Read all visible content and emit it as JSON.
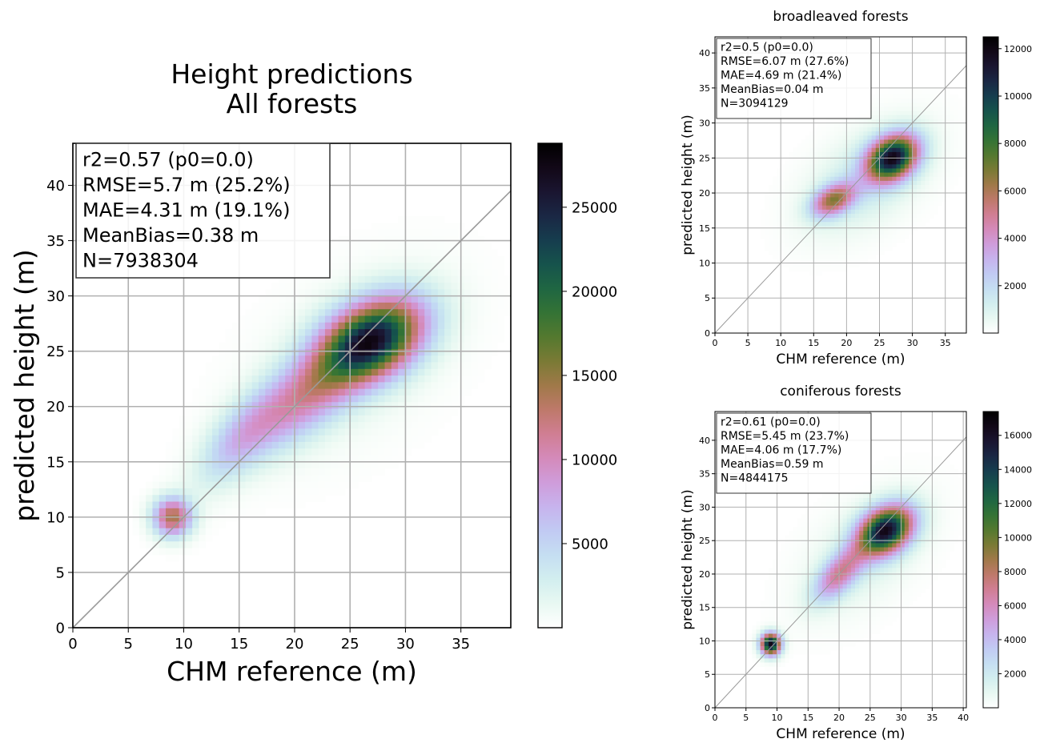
{
  "chart_data": [
    {
      "type": "heatmap",
      "title": "Height predictions\nAll forests",
      "xlabel": "CHM reference (m)",
      "ylabel": "predicted height (m)",
      "xlim": [
        0,
        39.5
      ],
      "ylim": [
        0,
        43.8
      ],
      "xticks": [
        0,
        5,
        10,
        15,
        20,
        25,
        30,
        35
      ],
      "yticks": [
        0,
        5,
        10,
        15,
        20,
        25,
        30,
        35,
        40
      ],
      "grid": true,
      "identity_line": true,
      "stats": [
        "r2=0.57 (p0=0.0)",
        "RMSE=5.7 m (25.2%)",
        "MAE=4.31 m (19.1%)",
        "MeanBias=0.38 m",
        "N=7938304"
      ],
      "colorbar": {
        "min": 0,
        "max": 28800,
        "ticks": [
          5000,
          10000,
          15000,
          20000,
          25000
        ],
        "colormap": "cubehelix_r"
      },
      "density_peaks": [
        {
          "x": 27,
          "y": 26,
          "sx": 3.4,
          "sy": 2.2,
          "angle_deg": 30,
          "count": 24500
        },
        {
          "x": 21,
          "y": 21,
          "sx": 4.5,
          "sy": 2.0,
          "angle_deg": 40,
          "count": 9500
        },
        {
          "x": 9,
          "y": 10,
          "sx": 1.2,
          "sy": 1.2,
          "angle_deg": 0,
          "count": 14000
        },
        {
          "x": 15,
          "y": 17,
          "sx": 3.5,
          "sy": 1.6,
          "angle_deg": 50,
          "count": 5500
        },
        {
          "x": 25,
          "y": 24,
          "sx": 7.5,
          "sy": 4.5,
          "angle_deg": 40,
          "count": 1300
        }
      ]
    },
    {
      "type": "heatmap",
      "title": "broadleaved forests",
      "xlabel": "CHM reference (m)",
      "ylabel": "predicted height (m)",
      "xlim": [
        0,
        38.2
      ],
      "ylim": [
        0,
        42.3
      ],
      "xticks": [
        0,
        5,
        10,
        15,
        20,
        25,
        30,
        35
      ],
      "yticks": [
        0,
        5,
        10,
        15,
        20,
        25,
        30,
        35,
        40
      ],
      "grid": true,
      "identity_line": true,
      "stats": [
        "r2=0.5 (p0=0.0)",
        "RMSE=6.07 m (27.6%)",
        "MAE=4.69 m (21.4%)",
        "MeanBias=0.04 m",
        "N=3094129"
      ],
      "colorbar": {
        "min": 0,
        "max": 12500,
        "ticks": [
          2000,
          4000,
          6000,
          8000,
          10000,
          12000
        ],
        "colormap": "cubehelix_r"
      },
      "density_peaks": [
        {
          "x": 27,
          "y": 25,
          "sx": 2.8,
          "sy": 2.0,
          "angle_deg": 30,
          "count": 11000
        },
        {
          "x": 18,
          "y": 19,
          "sx": 2.4,
          "sy": 1.4,
          "angle_deg": 25,
          "count": 5800
        },
        {
          "x": 23,
          "y": 22,
          "sx": 7.0,
          "sy": 4.0,
          "angle_deg": 35,
          "count": 1500
        }
      ]
    },
    {
      "type": "heatmap",
      "title": "coniferous forests",
      "xlabel": "CHM reference (m)",
      "ylabel": "predicted height (m)",
      "xlim": [
        0,
        40.5
      ],
      "ylim": [
        0,
        44.3
      ],
      "xticks": [
        0,
        5,
        10,
        15,
        20,
        25,
        30,
        35,
        40
      ],
      "yticks": [
        0,
        5,
        10,
        15,
        20,
        25,
        30,
        35,
        40
      ],
      "grid": true,
      "identity_line": true,
      "stats": [
        "r2=0.61 (p0=0.0)",
        "RMSE=5.45 m (23.7%)",
        "MAE=4.06 m (17.7%)",
        "MeanBias=0.59 m",
        "N=4844175"
      ],
      "colorbar": {
        "min": 0,
        "max": 17400,
        "ticks": [
          2000,
          4000,
          6000,
          8000,
          10000,
          12000,
          14000,
          16000
        ],
        "colormap": "cubehelix_r"
      },
      "density_peaks": [
        {
          "x": 27.5,
          "y": 26.5,
          "sx": 3.2,
          "sy": 2.2,
          "angle_deg": 30,
          "count": 15500
        },
        {
          "x": 9,
          "y": 9.5,
          "sx": 1.1,
          "sy": 1.1,
          "angle_deg": 0,
          "count": 16500
        },
        {
          "x": 20,
          "y": 20,
          "sx": 3.5,
          "sy": 1.7,
          "angle_deg": 45,
          "count": 6000
        },
        {
          "x": 24,
          "y": 23,
          "sx": 8.0,
          "sy": 4.5,
          "angle_deg": 40,
          "count": 1300
        }
      ]
    }
  ]
}
